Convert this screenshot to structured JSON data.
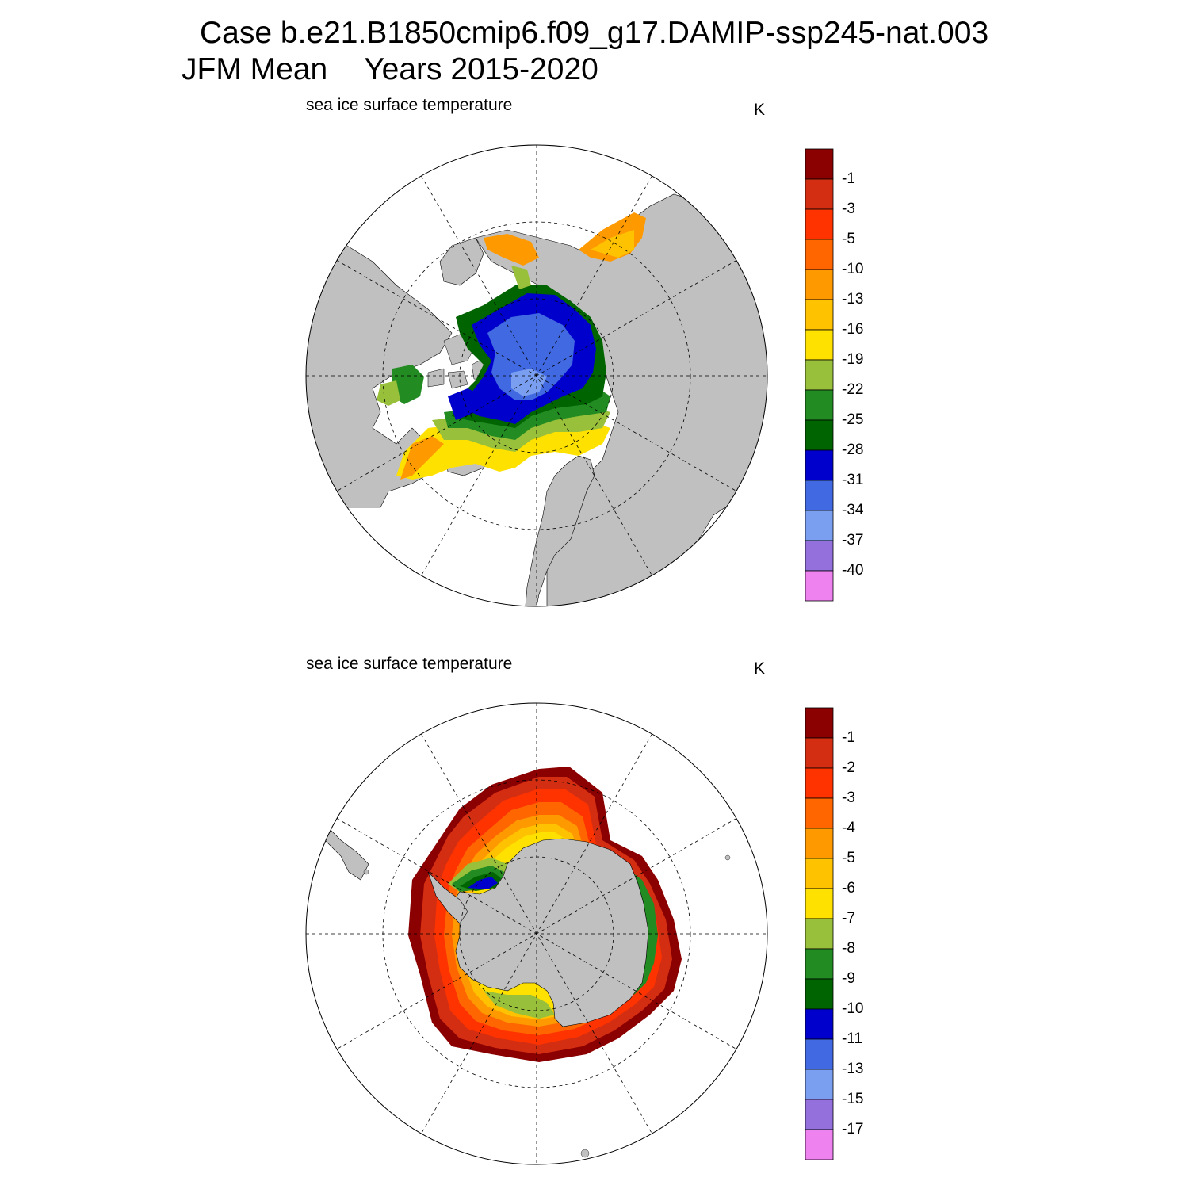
{
  "title": {
    "case_line": "Case b.e21.B1850cmip6.f09_g17.DAMIP-ssp245-nat.003",
    "season": "JFM Mean",
    "years": "Years 2015-2020"
  },
  "panels": [
    {
      "id": "north",
      "label": "sea ice surface temperature",
      "units": "K",
      "hemisphere": "Northern",
      "colorbar": {
        "colors": [
          "#8b0000",
          "#d42e12",
          "#ff3300",
          "#ff6600",
          "#ff9900",
          "#ffc200",
          "#ffe100",
          "#99c03a",
          "#228b22",
          "#006400",
          "#0000cd",
          "#4169e1",
          "#7b9ff0",
          "#9370db",
          "#ee82ee"
        ],
        "labels": [
          "-1",
          "-3",
          "-5",
          "-10",
          "-13",
          "-16",
          "-19",
          "-22",
          "-25",
          "-28",
          "-31",
          "-34",
          "-37",
          "-40"
        ]
      }
    },
    {
      "id": "south",
      "label": "sea ice surface temperature",
      "units": "K",
      "hemisphere": "Southern",
      "colorbar": {
        "colors": [
          "#8b0000",
          "#d42e12",
          "#ff3300",
          "#ff6600",
          "#ff9900",
          "#ffc200",
          "#ffe100",
          "#99c03a",
          "#228b22",
          "#006400",
          "#0000cd",
          "#4169e1",
          "#7b9ff0",
          "#9370db",
          "#ee82ee"
        ],
        "labels": [
          "-1",
          "-2",
          "-3",
          "-4",
          "-5",
          "-6",
          "-7",
          "-8",
          "-9",
          "-10",
          "-11",
          "-13",
          "-15",
          "-17"
        ]
      }
    }
  ]
}
